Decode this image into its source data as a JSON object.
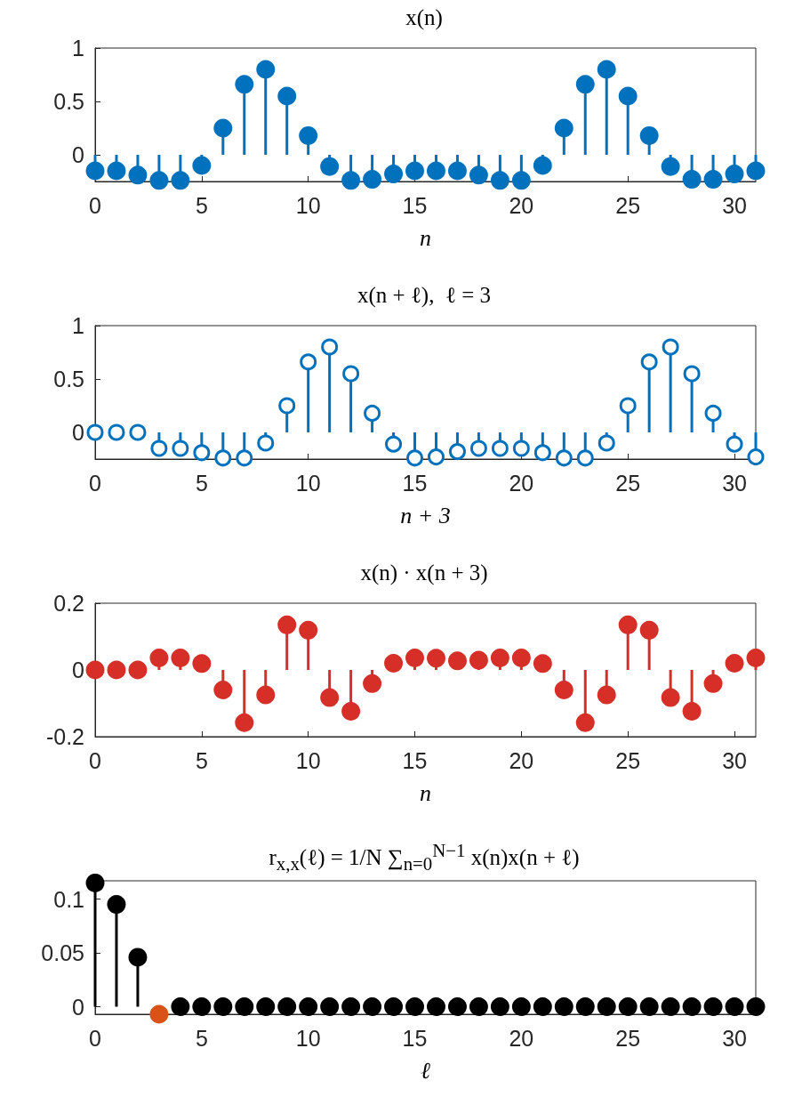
{
  "chart_data": [
    {
      "type": "lollipop",
      "title": "x(n)",
      "xlabel": "n",
      "x": [
        0,
        1,
        2,
        3,
        4,
        5,
        6,
        7,
        8,
        9,
        10,
        11,
        12,
        13,
        14,
        15,
        16,
        17,
        18,
        19,
        20,
        21,
        22,
        23,
        24,
        25,
        26,
        27,
        28,
        29,
        30,
        31
      ],
      "xlim": [
        0,
        31
      ],
      "xticks": [
        0,
        5,
        10,
        15,
        20,
        25,
        30
      ],
      "ylim": [
        -0.25,
        1
      ],
      "yticks": [
        0,
        0.5,
        1
      ],
      "grid": false,
      "marker": "circle",
      "color": "#0072bd",
      "values": [
        -0.15,
        -0.15,
        -0.19,
        -0.24,
        -0.24,
        -0.1,
        0.25,
        0.66,
        0.8,
        0.55,
        0.18,
        -0.11,
        -0.24,
        -0.23,
        -0.18,
        -0.15,
        -0.15,
        -0.15,
        -0.19,
        -0.24,
        -0.24,
        -0.1,
        0.25,
        0.66,
        0.8,
        0.55,
        0.18,
        -0.11,
        -0.23,
        -0.23,
        -0.18,
        -0.15
      ]
    },
    {
      "type": "lollipop",
      "title": "x(n + ℓ),  ℓ = 3",
      "xlabel": "n + 3",
      "x": [
        0,
        1,
        2,
        3,
        4,
        5,
        6,
        7,
        8,
        9,
        10,
        11,
        12,
        13,
        14,
        15,
        16,
        17,
        18,
        19,
        20,
        21,
        22,
        23,
        24,
        25,
        26,
        27,
        28,
        29,
        30,
        31
      ],
      "xlim": [
        0,
        31
      ],
      "xticks": [
        0,
        5,
        10,
        15,
        20,
        25,
        30
      ],
      "ylim": [
        -0.25,
        1
      ],
      "yticks": [
        0,
        0.5,
        1
      ],
      "grid": false,
      "marker": "open_circle",
      "color": "#0072bd",
      "values": [
        0,
        0,
        0,
        -0.15,
        -0.15,
        -0.19,
        -0.24,
        -0.24,
        -0.1,
        0.25,
        0.66,
        0.8,
        0.55,
        0.18,
        -0.11,
        -0.24,
        -0.23,
        -0.18,
        -0.15,
        -0.15,
        -0.15,
        -0.19,
        -0.24,
        -0.24,
        -0.1,
        0.25,
        0.66,
        0.8,
        0.55,
        0.18,
        -0.11,
        -0.23
      ]
    },
    {
      "type": "lollipop",
      "title": "x(n) · x(n + 3)",
      "xlabel": "n",
      "x": [
        0,
        1,
        2,
        3,
        4,
        5,
        6,
        7,
        8,
        9,
        10,
        11,
        12,
        13,
        14,
        15,
        16,
        17,
        18,
        19,
        20,
        21,
        22,
        23,
        24,
        25,
        26,
        27,
        28,
        29,
        30,
        31
      ],
      "xlim": [
        0,
        31
      ],
      "xticks": [
        0,
        5,
        10,
        15,
        20,
        25,
        30
      ],
      "ylim": [
        -0.2,
        0.2
      ],
      "yticks": [
        -0.2,
        0,
        0.2
      ],
      "grid": false,
      "marker": "circle",
      "color": "#d62f28",
      "values": [
        0,
        0,
        0,
        0.036,
        0.036,
        0.019,
        -0.06,
        -0.158,
        -0.075,
        0.135,
        0.119,
        -0.083,
        -0.124,
        -0.041,
        0.02,
        0.036,
        0.035,
        0.027,
        0.029,
        0.036,
        0.036,
        0.019,
        -0.06,
        -0.158,
        -0.075,
        0.135,
        0.119,
        -0.083,
        -0.124,
        -0.041,
        0.02,
        0.036
      ]
    },
    {
      "type": "lollipop",
      "title": "r$_{x,x}$(ℓ) = 1/N ∑$_{n=0}$$^{N−1}$ x(n)x(n + ℓ)",
      "xlabel": "ℓ",
      "x": [
        0,
        1,
        2,
        3,
        4,
        5,
        6,
        7,
        8,
        9,
        10,
        11,
        12,
        13,
        14,
        15,
        16,
        17,
        18,
        19,
        20,
        21,
        22,
        23,
        24,
        25,
        26,
        27,
        28,
        29,
        30,
        31
      ],
      "xlim": [
        0,
        31
      ],
      "xticks": [
        0,
        5,
        10,
        15,
        20,
        25,
        30
      ],
      "ylim": [
        -0.007,
        0.117
      ],
      "yticks": [
        0,
        0.05,
        0.1
      ],
      "grid": false,
      "marker": "circle",
      "color": "#000000",
      "colors": [
        "#000000",
        "#000000",
        "#000000",
        "#d95319",
        "#000000",
        "#000000",
        "#000000",
        "#000000",
        "#000000",
        "#000000",
        "#000000",
        "#000000",
        "#000000",
        "#000000",
        "#000000",
        "#000000",
        "#000000",
        "#000000",
        "#000000",
        "#000000",
        "#000000",
        "#000000",
        "#000000",
        "#000000",
        "#000000",
        "#000000",
        "#000000",
        "#000000",
        "#000000",
        "#000000",
        "#000000",
        "#000000"
      ],
      "values": [
        0.115,
        0.095,
        0.046,
        -0.007,
        0,
        0,
        0,
        0,
        0,
        0,
        0,
        0,
        0,
        0,
        0,
        0,
        0,
        0,
        0,
        0,
        0,
        0,
        0,
        0,
        0,
        0,
        0,
        0,
        0,
        0,
        0,
        0
      ]
    }
  ]
}
